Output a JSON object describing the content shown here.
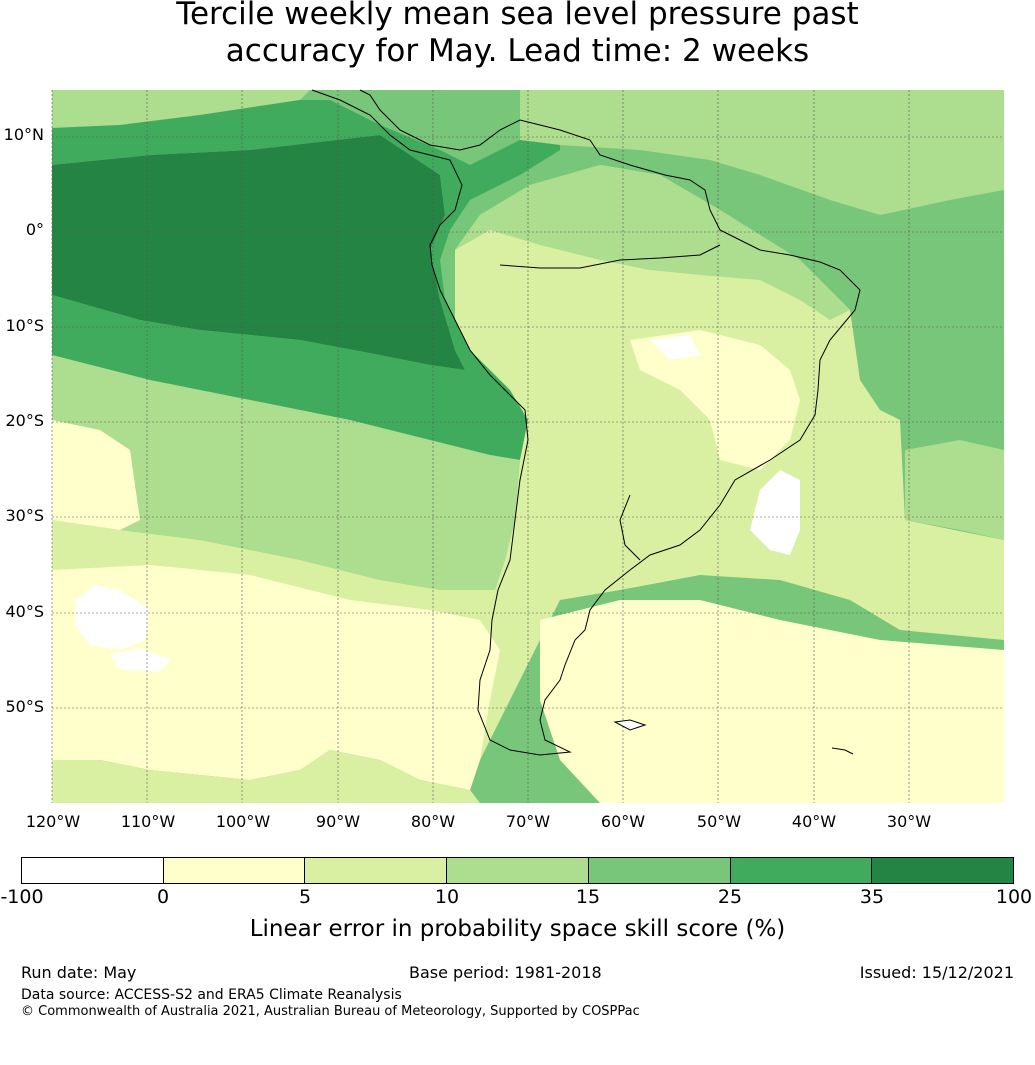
{
  "title_line1": "Tercile weekly mean sea level pressure past",
  "title_line2": "accuracy for May. Lead time: 2 weeks",
  "map": {
    "lat_labels": [
      "10°N",
      "0°",
      "10°S",
      "20°S",
      "30°S",
      "40°S",
      "50°S"
    ],
    "lon_labels": [
      "120°W",
      "110°W",
      "100°W",
      "90°W",
      "80°W",
      "70°W",
      "60°W",
      "50°W",
      "40°W",
      "30°W"
    ],
    "colors": [
      "#ffffff",
      "#ffffcc",
      "#d9f0a3",
      "#addd8e",
      "#78c679",
      "#41ab5d",
      "#238443"
    ]
  },
  "colorbar": {
    "ticks": [
      "-100",
      "0",
      "5",
      "10",
      "15",
      "25",
      "35",
      "100"
    ],
    "label": "Linear error in probability space skill score (%)"
  },
  "footer": {
    "run_date": "Run date: May",
    "base_period": "Base period: 1981-2018",
    "issued": "Issued: 15/12/2021",
    "data_source": "Data source: ACCESS-S2 and ERA5 Climate Reanalysis",
    "copyright": "© Commonwealth of Australia 2021, Australian Bureau of Meteorology, Supported by COSPPac"
  }
}
